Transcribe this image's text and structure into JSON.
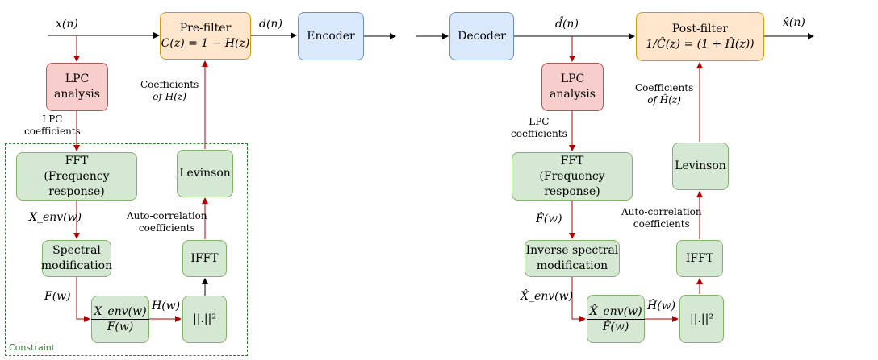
{
  "left": {
    "input_label": "x(n)",
    "prefilter": {
      "title": "Pre-filter",
      "formula": "C(z) = 1 − H(z)"
    },
    "output_label": "d(n)",
    "encoder": "Encoder",
    "lpc": {
      "line1": "LPC",
      "line2": "analysis"
    },
    "lpc_coeff_label": {
      "line1": "LPC",
      "line2": "coefficients"
    },
    "fft": {
      "line1": "FFT",
      "line2": "(Frequency response)"
    },
    "xenv_label": "X_env(w)",
    "spectral": {
      "line1": "Spectral",
      "line2": "modification"
    },
    "f_label": "F(w)",
    "ratio": {
      "num": "X_env(w)",
      "den": "F(w)"
    },
    "h_label": "H(w)",
    "magsq": "||.||²",
    "ifft": "IFFT",
    "autocorr_label": {
      "line1": "Auto-correlation",
      "line2": "coefficients"
    },
    "levinson": "Levinson",
    "coeff_h_label": {
      "line1": "Coefficients",
      "line2": "of H(z)"
    },
    "constraint": "Constraint"
  },
  "right": {
    "decoder": "Decoder",
    "dhat_label": "d̂(n)",
    "postfilter": {
      "title": "Post-filter",
      "formula": "1/Ĉ(z) = (1 + Ĥ(z))"
    },
    "xhat_label": "x̂(n)",
    "lpc": {
      "line1": "LPC",
      "line2": "analysis"
    },
    "lpc_coeff_label": {
      "line1": "LPC",
      "line2": "coefficients"
    },
    "fft": {
      "line1": "FFT",
      "line2": "(Frequency response)"
    },
    "fhat_label": "F̂(w)",
    "inverse": {
      "line1": "Inverse spectral",
      "line2": "modification"
    },
    "xenvhat_label": "X̂_env(w)",
    "ratio": {
      "num": "X̂_env(w)",
      "den": "F̂(w)"
    },
    "hhat_label": "Ĥ(w)",
    "magsq": "||.||²",
    "ifft": "IFFT",
    "autocorr_label": {
      "line1": "Auto-correlation",
      "line2": "coefficients"
    },
    "levinson": "Levinson",
    "coeff_h_label": {
      "line1": "Coefficients",
      "line2": "of Ĥ(z)"
    }
  },
  "colors": {
    "green_fill": "#d5e8d4",
    "green_stroke": "#82b366",
    "red_fill": "#f8cecc",
    "red_stroke": "#b85450",
    "blue_fill": "#dae8fc",
    "blue_stroke": "#6c8ebf",
    "orange_fill": "#ffe6cc",
    "orange_stroke": "#d79b00",
    "red_arrow": "#b20000",
    "black_arrow": "#000000",
    "constraint_border": "#2e7d32"
  }
}
